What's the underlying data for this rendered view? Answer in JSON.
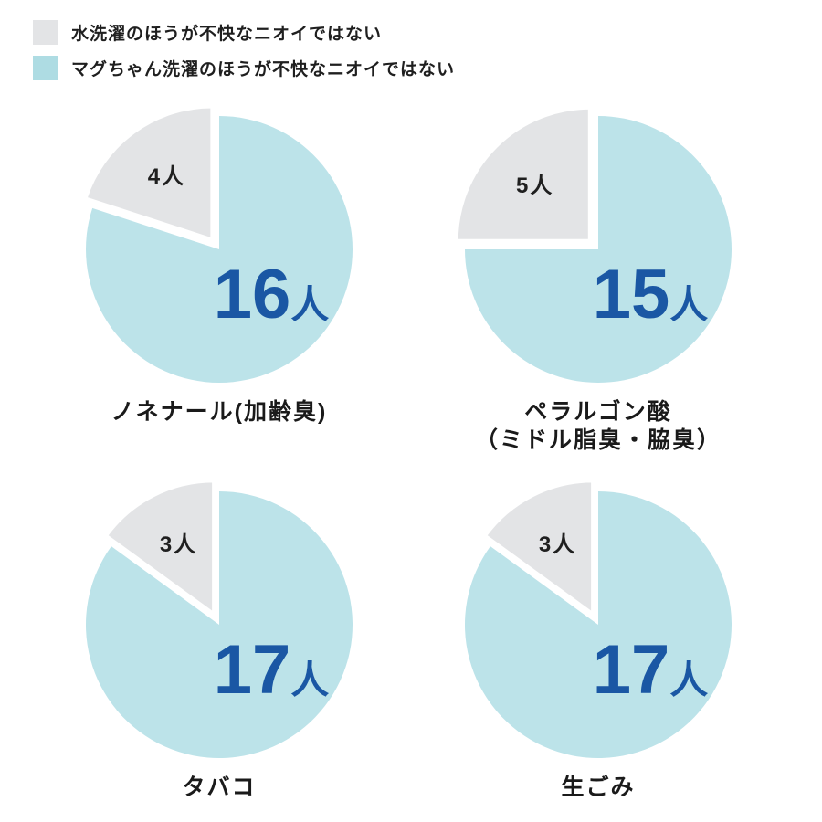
{
  "page": {
    "background": "#ffffff"
  },
  "colors": {
    "water_gray": "#e3e4e6",
    "magchan_blue": "#bce3e9",
    "legend_blue": "#aedce3",
    "count_blue": "#1a57a4",
    "text_black": "#1f1f1f"
  },
  "legend": {
    "items": [
      {
        "id": "water",
        "label": "水洗濯のほうが不快なニオイではない",
        "color": "#e3e4e6"
      },
      {
        "id": "magchan",
        "label": "マグちゃん洗濯のほうが不快なニオイではない",
        "color": "#aedce3"
      }
    ]
  },
  "chart_data": {
    "type": "pie",
    "unit": "人",
    "respondents_per_chart": 20,
    "series_labels": {
      "magchan": "マグちゃん洗濯のほうが不快なニオイではない",
      "water": "水洗濯のほうが不快なニオイではない"
    },
    "slice_colors": {
      "magchan": "#bce3e9",
      "water": "#e3e4e6"
    },
    "value_text_color": "#1a57a4",
    "small_label_color": "#1f1f1f",
    "layout_hint": "2x2 grid, water slice exploded toward upper-left, slices start at 12 o'clock clockwise with magchan first",
    "charts": [
      {
        "title_lines": [
          "ノネナール(加齢臭)"
        ],
        "magchan_value": 16,
        "water_value": 4
      },
      {
        "title_lines": [
          "ペラルゴン酸",
          "（ミドル脂臭・脇臭）"
        ],
        "magchan_value": 15,
        "water_value": 5
      },
      {
        "title_lines": [
          "タバコ"
        ],
        "magchan_value": 17,
        "water_value": 3
      },
      {
        "title_lines": [
          "生ごみ"
        ],
        "magchan_value": 17,
        "water_value": 3
      }
    ]
  }
}
